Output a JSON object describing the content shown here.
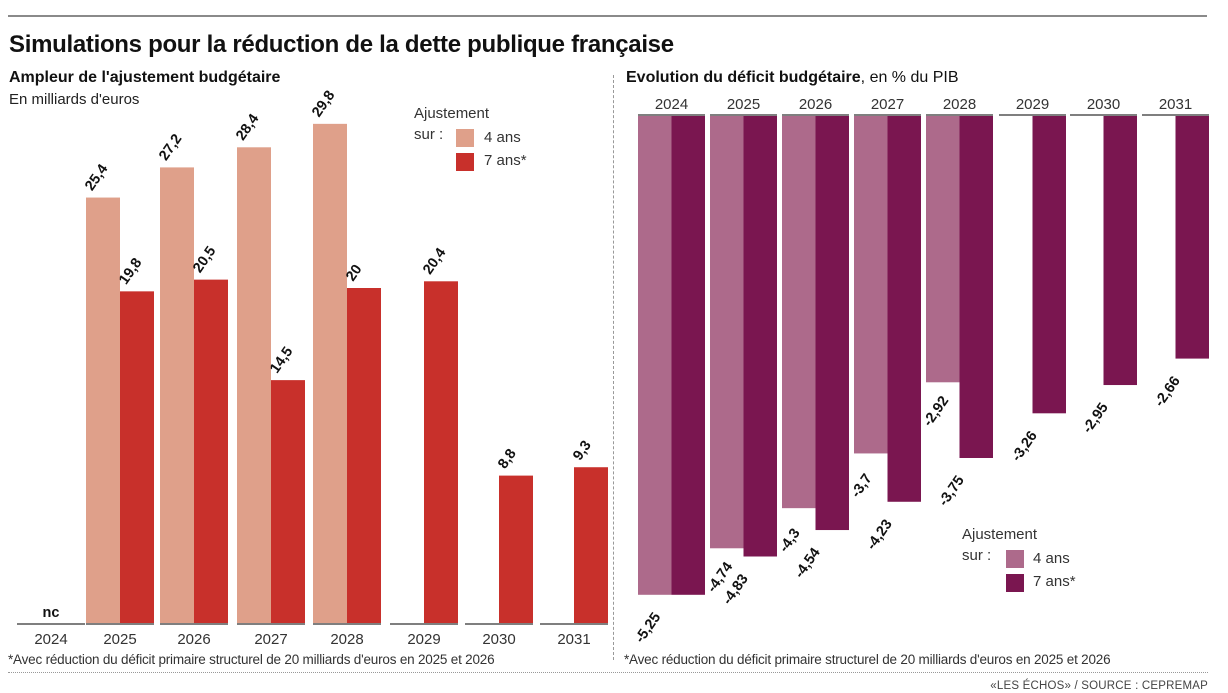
{
  "title": "Simulations pour la réduction de la dette publique française",
  "source": "«LES ÉCHOS» / SOURCE : CEPREMAP",
  "colors": {
    "left_4ans": "#dfa08a",
    "left_7ans": "#c8302b",
    "right_4ans": "#ad6a8b",
    "right_7ans": "#7a1650",
    "baseline": "#555555"
  },
  "chart_data": [
    {
      "type": "bar",
      "title": "Ampleur de l'ajustement budgétaire",
      "subtitle": "En milliards d'euros",
      "xlabel": "",
      "ylabel": "",
      "ylim": [
        0,
        30
      ],
      "categories": [
        "2024",
        "2025",
        "2026",
        "2027",
        "2028",
        "2029",
        "2030",
        "2031"
      ],
      "legend": {
        "title_line1": "Ajustement",
        "title_line2": "sur :",
        "placement": "top-right"
      },
      "series": [
        {
          "name": "4 ans",
          "values": [
            null,
            25.4,
            27.2,
            28.4,
            29.8,
            null,
            null,
            null
          ],
          "labels": [
            "",
            "25,4",
            "27,2",
            "28,4",
            "29,8",
            "",
            "",
            ""
          ]
        },
        {
          "name": "7 ans*",
          "values": [
            null,
            19.8,
            20.5,
            14.5,
            20,
            20.4,
            8.8,
            9.3
          ],
          "labels": [
            "",
            "19,8",
            "20,5",
            "14,5",
            "20",
            "20,4",
            "8,8",
            "9,3"
          ]
        }
      ],
      "annotations": [
        "nc"
      ],
      "footnote": "*Avec réduction du déficit primaire structurel de 20 milliards d'euros en 2025 et 2026"
    },
    {
      "type": "bar",
      "title": "Evolution du déficit budgétaire",
      "title_suffix": ", en % du PIB",
      "xlabel": "",
      "ylabel": "",
      "ylim": [
        -5.5,
        0
      ],
      "categories": [
        "2024",
        "2025",
        "2026",
        "2027",
        "2028",
        "2029",
        "2030",
        "2031"
      ],
      "legend": {
        "title_line1": "Ajustement",
        "title_line2": "sur :",
        "placement": "bottom-right"
      },
      "series": [
        {
          "name": "4 ans",
          "values": [
            -5.25,
            -4.74,
            -4.3,
            -3.7,
            -2.92,
            null,
            null,
            null
          ],
          "labels": [
            "",
            "-4,74",
            "-4,3",
            "-3,7",
            "-2,92",
            "",
            "",
            ""
          ]
        },
        {
          "name": "7 ans*",
          "values": [
            -5.25,
            -4.83,
            -4.54,
            -4.23,
            -3.75,
            -3.26,
            -2.95,
            -2.66
          ],
          "labels": [
            "-5,25",
            "-4,83",
            "-4,54",
            "-4,23",
            "-3,75",
            "-3,26",
            "-2,95",
            "-2,66"
          ]
        }
      ],
      "footnote": "*Avec réduction du déficit primaire structurel de 20 milliards d'euros en 2025 et 2026"
    }
  ]
}
